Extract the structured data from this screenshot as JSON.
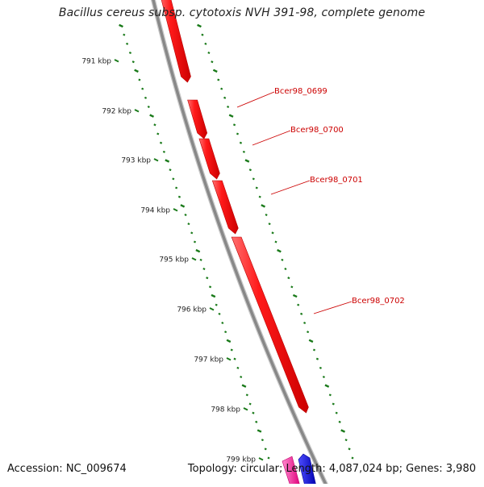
{
  "header": {
    "title": "Bacillus cereus subsp. cytotoxis NVH 391-98, complete genome"
  },
  "footer": {
    "accession": "Accession: NC_009674",
    "summary": "Topology: circular; Length: 4,087,024 bp; Genes: 3,980"
  },
  "ticks": [
    {
      "label": "791 kbp"
    },
    {
      "label": "792 kbp"
    },
    {
      "label": "793 kbp"
    },
    {
      "label": "794 kbp"
    },
    {
      "label": "795 kbp"
    },
    {
      "label": "796 kbp"
    },
    {
      "label": "797 kbp"
    },
    {
      "label": "798 kbp"
    },
    {
      "label": "799 kbp"
    }
  ],
  "genes": [
    {
      "label": "",
      "strand": "forward",
      "color": "#ff0000"
    },
    {
      "label": "Bcer98_0699",
      "strand": "forward",
      "color": "#ff0000"
    },
    {
      "label": "Bcer98_0700",
      "strand": "forward",
      "color": "#ff0000"
    },
    {
      "label": "Bcer98_0701",
      "strand": "forward",
      "color": "#ff0000"
    },
    {
      "label": "Bcer98_0702",
      "strand": "forward",
      "color": "#ff0000"
    }
  ],
  "partial_features": [
    {
      "color": "#ff1493"
    },
    {
      "color": "#0000ff"
    }
  ],
  "colors": {
    "backbone": "#888888",
    "tick": "#1a7a1a",
    "gene_label": "#cc0000"
  }
}
